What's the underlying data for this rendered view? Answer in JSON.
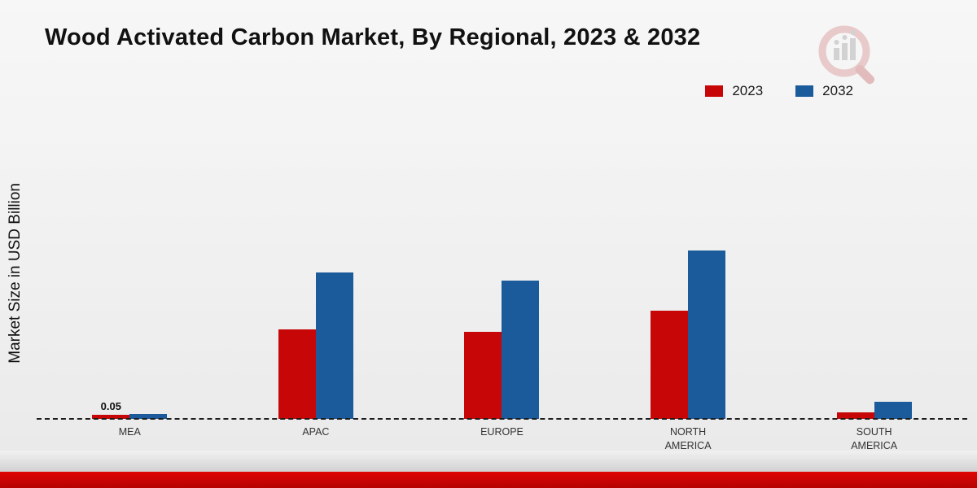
{
  "title": "Wood Activated Carbon Market, By Regional, 2023 & 2032",
  "ylabel": "Market Size in USD Billion",
  "colors": {
    "series_2023": "#c70707",
    "series_2032": "#1b5a9b",
    "footer_red_top": "#e00505",
    "footer_red_bottom": "#b50202"
  },
  "chart_data": {
    "type": "bar",
    "title": "Wood Activated Carbon Market, By Regional, 2023 & 2032",
    "xlabel": "",
    "ylabel": "Market Size in USD Billion",
    "categories": [
      "MEA",
      "APAC",
      "EUROPE",
      "NORTH AMERICA",
      "SOUTH AMERICA"
    ],
    "series": [
      {
        "name": "2023",
        "color": "#c70707",
        "values": [
          0.05,
          1.11,
          1.08,
          1.35,
          0.08
        ],
        "data_labels": [
          "0.05",
          null,
          null,
          null,
          null
        ]
      },
      {
        "name": "2032",
        "color": "#1b5a9b",
        "values": [
          0.06,
          1.82,
          1.72,
          2.1,
          0.21
        ],
        "data_labels": [
          null,
          null,
          null,
          null,
          null
        ]
      }
    ],
    "ylim": [
      0,
      4.2
    ],
    "grid": false,
    "legend_position": "top-right",
    "baseline_style": "dashed"
  }
}
